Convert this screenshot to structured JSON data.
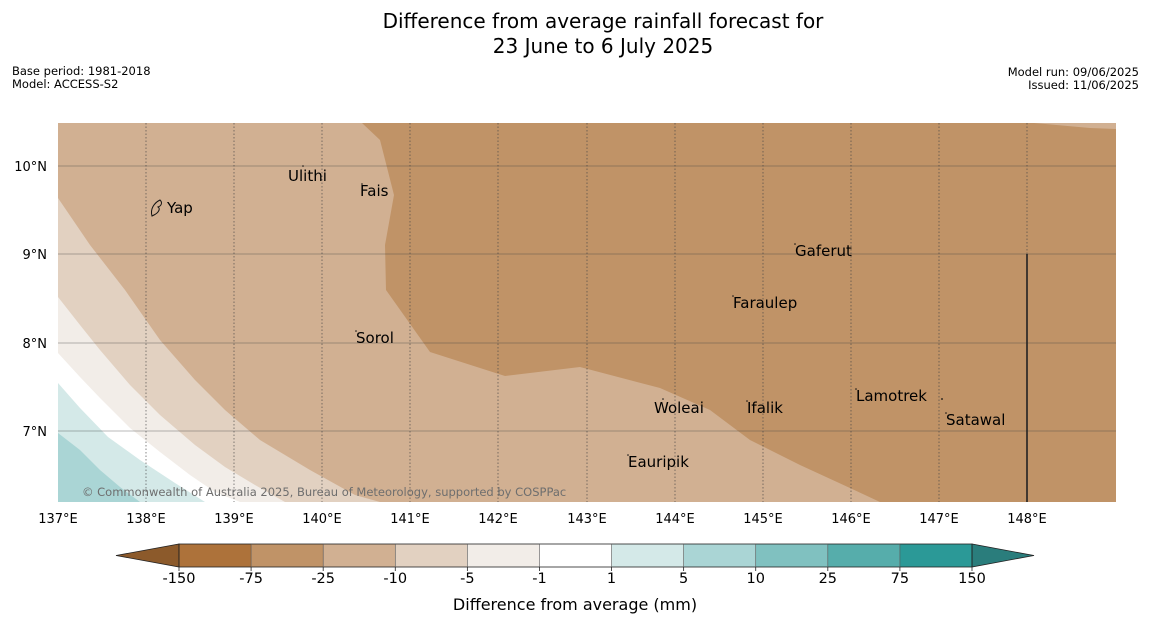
{
  "title_line1": "Difference from average rainfall forecast for",
  "title_line2": "23 June to 6 July 2025",
  "meta_left": {
    "base_period": "Base period: 1981-2018",
    "model": "Model: ACCESS-S2"
  },
  "meta_right": {
    "model_run": "Model run: 09/06/2025",
    "issued": "Issued: 11/06/2025"
  },
  "copyright": "© Commonwealth of Australia 2025, Bureau of Meteorology, supported by COSPPac",
  "lon_labels": [
    "137°E",
    "138°E",
    "139°E",
    "140°E",
    "141°E",
    "142°E",
    "143°E",
    "144°E",
    "145°E",
    "146°E",
    "147°E",
    "148°E"
  ],
  "lat_labels": [
    "10°N",
    "9°N",
    "8°N",
    "7°N"
  ],
  "places": [
    {
      "name": "Ulithi"
    },
    {
      "name": "Fais"
    },
    {
      "name": "Yap"
    },
    {
      "name": "Gaferut"
    },
    {
      "name": "Faraulep"
    },
    {
      "name": "Sorol"
    },
    {
      "name": "Woleai"
    },
    {
      "name": "Ifalik"
    },
    {
      "name": "Lamotrek"
    },
    {
      "name": "Satawal"
    },
    {
      "name": "Eauripik"
    }
  ],
  "legend": {
    "title": "Difference from average (mm)",
    "tick_labels": [
      "-150",
      "-75",
      "-25",
      "-10",
      "-5",
      "-1",
      "1",
      "5",
      "10",
      "25",
      "75",
      "150"
    ],
    "colors": [
      "#ad723a",
      "#c09367",
      "#d1b092",
      "#e2d1c1",
      "#f2ede8",
      "#ffffff",
      "#d4e9e8",
      "#aad5d5",
      "#80c1c0",
      "#56adab",
      "#2b9997"
    ],
    "extend_low_color": "#8c5a2b",
    "extend_high_color": "#2a7d7c"
  }
}
